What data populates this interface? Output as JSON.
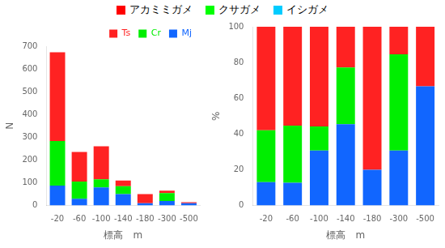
{
  "figure_legend": [
    {
      "name": "アカミミガメ",
      "color": "#ff0000"
    },
    {
      "name": "クサガメ",
      "color": "#00ff00"
    },
    {
      "name": "イシガメ",
      "color": "#00ccff"
    }
  ],
  "chart_data": [
    {
      "type": "bar",
      "stacked": true,
      "categories": [
        "-20",
        "-60",
        "-100",
        "-140",
        "-180",
        "-300",
        "-500"
      ],
      "series": [
        {
          "name": "Mj",
          "color": "#1166ff",
          "values": [
            88,
            30,
            80,
            50,
            10,
            20,
            10
          ]
        },
        {
          "name": "Cr",
          "color": "#00ee00",
          "values": [
            195,
            75,
            35,
            35,
            0,
            35,
            0
          ]
        },
        {
          "name": "Ts",
          "color": "#ff2222",
          "values": [
            390,
            130,
            145,
            25,
            40,
            10,
            5
          ]
        }
      ],
      "xlabel": "標高　m",
      "ylabel": "N",
      "ylim": [
        0,
        700
      ],
      "yticks": [
        0,
        100,
        200,
        300,
        400,
        500,
        600,
        700
      ],
      "grid": false,
      "legend": "upper right"
    },
    {
      "type": "bar",
      "stacked": true,
      "categories": [
        "-20",
        "-60",
        "-100",
        "-140",
        "-180",
        "-300",
        "-500"
      ],
      "series": [
        {
          "color": "#1166ff",
          "values": [
            13.0758,
            12.766,
            30.7692,
            45.4545,
            20,
            30.7692,
            66.6667
          ]
        },
        {
          "color": "#00ee00",
          "values": [
            28.9747,
            31.9149,
            13.4615,
            31.8182,
            0,
            53.8462,
            0
          ]
        },
        {
          "color": "#ff2222",
          "values": [
            57.9495,
            55.3191,
            55.7692,
            22.7273,
            80,
            15.3846,
            33.3333
          ]
        }
      ],
      "xlabel": "標高　m",
      "ylabel": "%",
      "ylim": [
        0,
        100
      ],
      "yticks": [
        0,
        20,
        40,
        60,
        80,
        100
      ],
      "grid": false
    }
  ]
}
